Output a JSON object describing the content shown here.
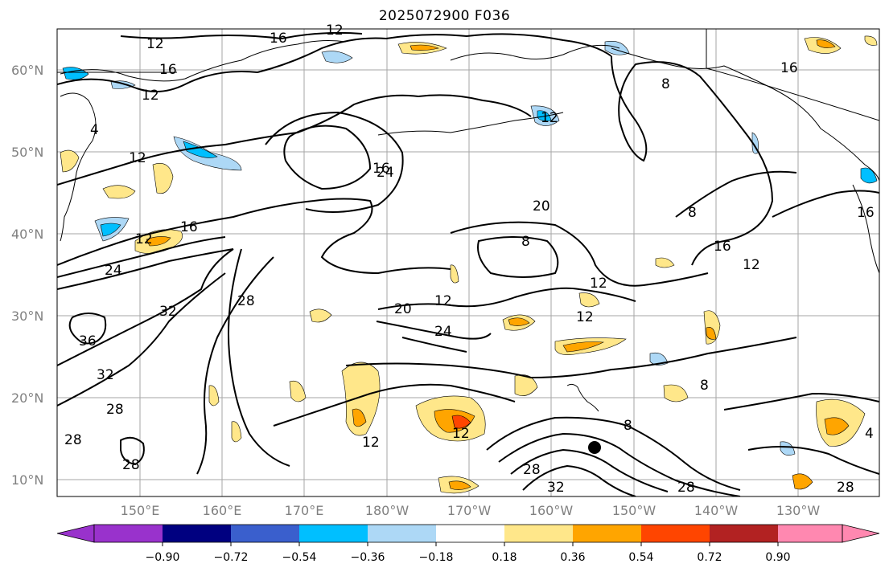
{
  "title": "2025072900 F036",
  "map": {
    "lat_labels": [
      "60°N",
      "50°N",
      "40°N",
      "30°N",
      "20°N",
      "10°N"
    ],
    "lon_labels": [
      "150°E",
      "160°E",
      "170°E",
      "180°W",
      "170°W",
      "160°W",
      "150°W",
      "140°W",
      "130°W"
    ],
    "contour_labels": [
      "12",
      "16",
      "12",
      "16",
      "12",
      "4",
      "12",
      "12",
      "16",
      "24",
      "32",
      "36",
      "32",
      "28",
      "28",
      "28",
      "16",
      "24",
      "20",
      "12",
      "20",
      "24",
      "12",
      "8",
      "12",
      "12",
      "8",
      "28",
      "28",
      "32",
      "28",
      "12",
      "8",
      "8",
      "16",
      "12",
      "16",
      "8",
      "16",
      "12",
      "4",
      "28"
    ],
    "marker": "filled-circle",
    "colors": {
      "contour": "#000000",
      "grid": "#808080",
      "coast": "#000000"
    }
  },
  "colorbar": {
    "ticks": [
      "−0.90",
      "−0.72",
      "−0.54",
      "−0.36",
      "−0.18",
      "0.18",
      "0.36",
      "0.54",
      "0.72",
      "0.90"
    ],
    "colors": [
      "#9932CC",
      "#000080",
      "#3A5FCD",
      "#00BFFF",
      "#ADD8F6",
      "#FFFFFF",
      "#FFE78A",
      "#FFA500",
      "#FF4500",
      "#B22222",
      "#FF88B0"
    ]
  }
}
